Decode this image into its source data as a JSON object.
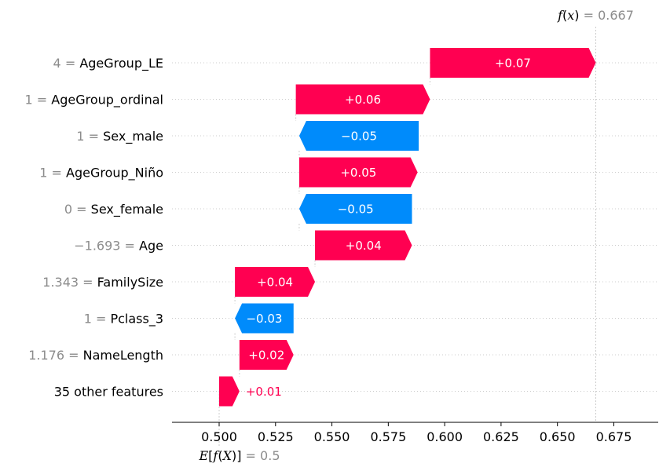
{
  "chart_data": {
    "type": "waterfall",
    "base_value": 0.5,
    "base_value_label": "0.5",
    "output_value": 0.667,
    "output_value_label": "0.667",
    "xlim": [
      0.478,
      0.696
    ],
    "xticks": [
      0.5,
      0.525,
      0.55,
      0.575,
      0.6,
      0.625,
      0.65,
      0.675
    ],
    "xtick_labels": [
      "0.500",
      "0.525",
      "0.550",
      "0.575",
      "0.600",
      "0.625",
      "0.650",
      "0.675"
    ],
    "features": [
      {
        "value": "4",
        "name": "AgeGroup_LE",
        "start": 0.5935,
        "end": 0.667,
        "label": "+0.07"
      },
      {
        "value": "1",
        "name": "AgeGroup_ordinal",
        "start": 0.534,
        "end": 0.5935,
        "label": "+0.06"
      },
      {
        "value": "1",
        "name": "Sex_male",
        "start": 0.5355,
        "end": 0.5885,
        "label": "−0.05"
      },
      {
        "value": "1",
        "name": "AgeGroup_Niño",
        "start": 0.5355,
        "end": 0.588,
        "label": "+0.05"
      },
      {
        "value": "0",
        "name": "Sex_female",
        "start": 0.5355,
        "end": 0.5855,
        "label": "−0.05"
      },
      {
        "value": "−1.693",
        "name": "Age",
        "start": 0.5425,
        "end": 0.5855,
        "label": "+0.04"
      },
      {
        "value": "1.343",
        "name": "FamilySize",
        "start": 0.507,
        "end": 0.5425,
        "label": "+0.04"
      },
      {
        "value": "1",
        "name": "Pclass_3",
        "start": 0.507,
        "end": 0.533,
        "label": "−0.03"
      },
      {
        "value": "1.176",
        "name": "NameLength",
        "start": 0.509,
        "end": 0.533,
        "label": "+0.02"
      },
      {
        "value": "",
        "name": "35 other features",
        "start": 0.5,
        "end": 0.509,
        "label": "+0.01"
      }
    ],
    "colors": {
      "positive": "#ff0051",
      "negative": "#008bfb",
      "grid": "#cccccc",
      "axis": "#000000",
      "value_gray": "#8c8c8c"
    }
  }
}
